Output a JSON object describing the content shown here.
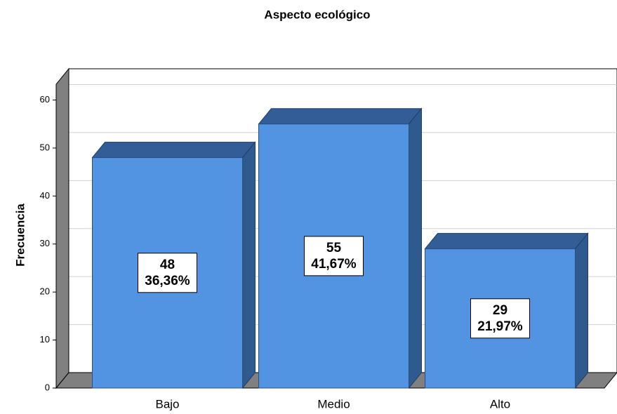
{
  "chart_data": {
    "type": "bar3d",
    "title": "Aspecto ecológico",
    "ylabel": "Frecuencia",
    "categories": [
      "Bajo",
      "Medio",
      "Alto"
    ],
    "values": [
      48,
      55,
      29
    ],
    "percent_labels": [
      "36,36%",
      "41,67%",
      "21,97%"
    ],
    "color": "#5294e2",
    "ylim": [
      0,
      63
    ],
    "yticks": [
      0,
      10,
      20,
      30,
      40,
      50,
      60
    ],
    "grid": true
  }
}
